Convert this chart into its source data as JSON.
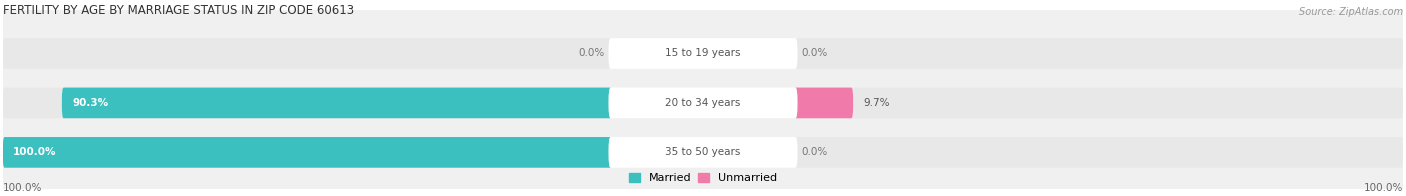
{
  "title": "FERTILITY BY AGE BY MARRIAGE STATUS IN ZIP CODE 60613",
  "source": "Source: ZipAtlas.com",
  "rows": [
    {
      "label": "15 to 19 years",
      "married": 0.0,
      "unmarried": 0.0
    },
    {
      "label": "20 to 34 years",
      "married": 90.3,
      "unmarried": 9.7
    },
    {
      "label": "35 to 50 years",
      "married": 100.0,
      "unmarried": 0.0
    }
  ],
  "married_color": "#3bbfbf",
  "unmarried_color": "#f07bab",
  "bar_bg_color": "#e8e8e8",
  "row_bg_odd": "#f0f0f0",
  "row_bg_even": "#e4e4e4",
  "title_fontsize": 8.5,
  "source_fontsize": 7,
  "label_fontsize": 7.5,
  "value_fontsize": 7.5,
  "legend_fontsize": 8,
  "axis_label_fontsize": 7.5,
  "left_axis_label": "100.0%",
  "right_axis_label": "100.0%"
}
